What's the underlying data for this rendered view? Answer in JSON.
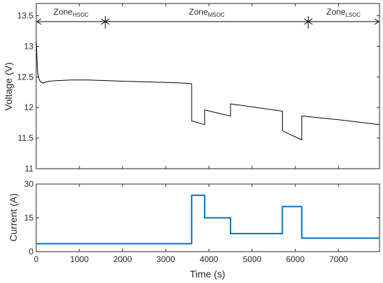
{
  "chart_data": [
    {
      "type": "line",
      "ylabel": "Voltage (V)",
      "xlabel": "",
      "xlim": [
        0,
        7950
      ],
      "ylim": [
        11,
        13.7
      ],
      "yticks": [
        11,
        11.5,
        12,
        12.5,
        13,
        13.5
      ],
      "ytick_labels": [
        "11",
        "11.5",
        "12",
        "12.5",
        "13",
        "13.5"
      ],
      "xticks": [
        0,
        1000,
        2000,
        3000,
        4000,
        5000,
        6000,
        7000
      ],
      "grid": false,
      "color": "#000000",
      "zones": [
        {
          "label": "Zone",
          "sub": "HSOC",
          "start": 0,
          "end": 1600
        },
        {
          "label": "Zone",
          "sub": "MSOC",
          "start": 1600,
          "end": 6300
        },
        {
          "label": "Zone",
          "sub": "LSOC",
          "start": 6300,
          "end": 7950
        }
      ],
      "series": [
        {
          "x": [
            0,
            15,
            30,
            50,
            80,
            120,
            160,
            200,
            300,
            500,
            800,
            1200,
            1600,
            2000,
            2500,
            3000,
            3400,
            3600,
            3600,
            3900,
            3900,
            4500,
            4500,
            5700,
            5700,
            6150,
            6150,
            7000,
            7950
          ],
          "y": [
            13.1,
            12.85,
            12.6,
            12.5,
            12.44,
            12.41,
            12.4,
            12.41,
            12.43,
            12.44,
            12.45,
            12.45,
            12.44,
            12.43,
            12.42,
            12.41,
            12.4,
            12.39,
            11.78,
            11.72,
            11.96,
            11.86,
            12.06,
            11.94,
            11.62,
            11.47,
            11.86,
            11.8,
            11.72
          ]
        }
      ]
    },
    {
      "type": "line",
      "ylabel": "Current (A)",
      "xlabel": "Time (s)",
      "xlim": [
        0,
        7950
      ],
      "ylim": [
        0,
        30
      ],
      "yticks": [
        0,
        15,
        30
      ],
      "ytick_labels": [
        "0",
        "15",
        "30"
      ],
      "xticks": [
        0,
        1000,
        2000,
        3000,
        4000,
        5000,
        6000,
        7000
      ],
      "xtick_labels": [
        "0",
        "1000",
        "2000",
        "3000",
        "4000",
        "5000",
        "6000",
        "7000"
      ],
      "grid": false,
      "color": "#0072BD",
      "series": [
        {
          "x": [
            0,
            3600,
            3600,
            3900,
            3900,
            4500,
            4500,
            5700,
            5700,
            6150,
            6150,
            7950
          ],
          "y": [
            3.5,
            3.5,
            25,
            25,
            15,
            15,
            8,
            8,
            20,
            20,
            6,
            6
          ]
        }
      ]
    }
  ]
}
